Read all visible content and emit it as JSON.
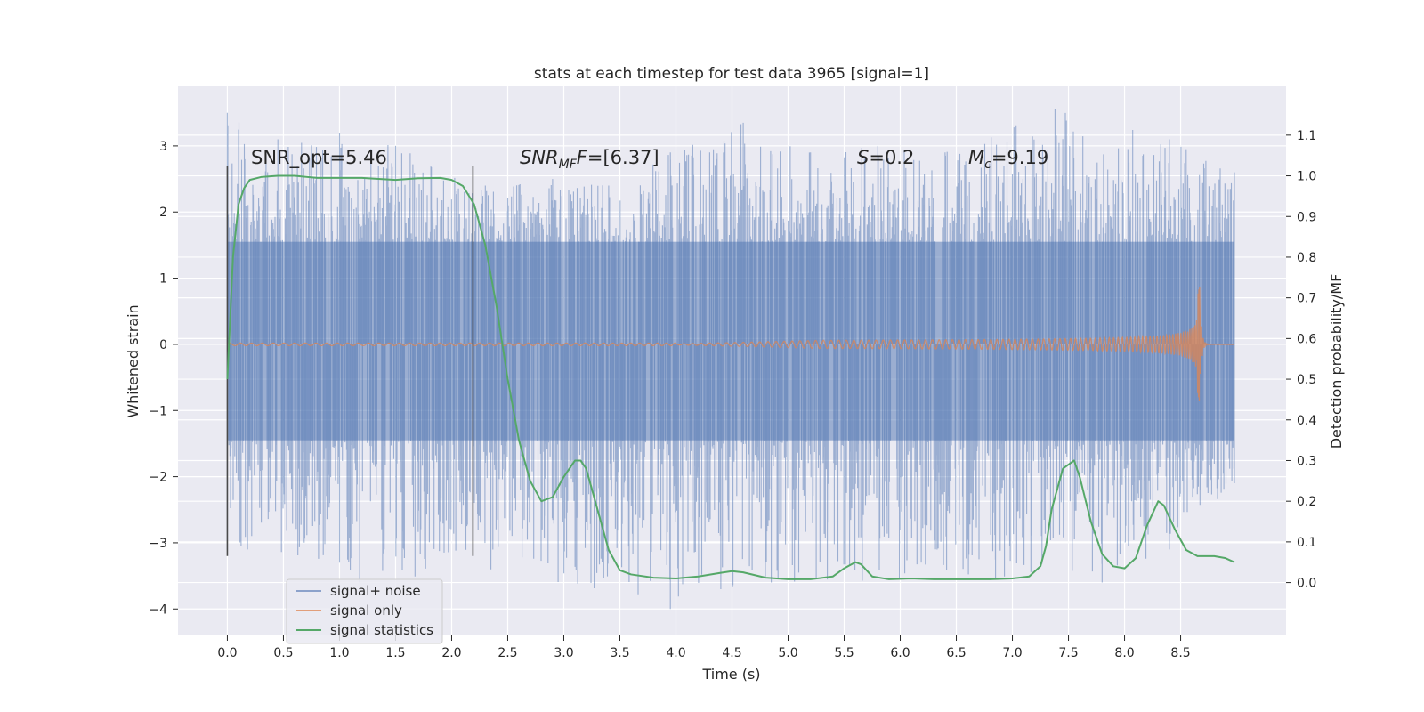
{
  "chart_data": {
    "type": "line",
    "title": "stats at each timestep for test data 3965 [signal=1]",
    "xlabel": "Time (s)",
    "ylabel": "Whitened strain",
    "y2label": "Detection probability/MF",
    "xlim": [
      -0.44,
      9.44
    ],
    "ylim": [
      -4.4,
      3.9
    ],
    "y2lim": [
      -0.13,
      1.22
    ],
    "xticks": [
      "0.0",
      "0.5",
      "1.0",
      "1.5",
      "2.0",
      "2.5",
      "3.0",
      "3.5",
      "4.0",
      "4.5",
      "5.0",
      "5.5",
      "6.0",
      "6.5",
      "7.0",
      "7.5",
      "8.0",
      "8.5"
    ],
    "yticks": [
      "−4",
      "−3",
      "−2",
      "−1",
      "0",
      "1",
      "2",
      "3"
    ],
    "y2ticks": [
      "0.0",
      "0.1",
      "0.2",
      "0.3",
      "0.4",
      "0.5",
      "0.6",
      "0.7",
      "0.8",
      "0.9",
      "1.0",
      "1.1"
    ],
    "grid": true,
    "legend_position": "lower-left",
    "colors": {
      "background": "#eaeaf2",
      "grid": "#ffffff",
      "noise": "#4c72b0",
      "signal": "#dd8452",
      "statistic": "#55a868",
      "vline": "#4a4a4a"
    },
    "annotations": {
      "snr_opt": "SNR_opt=5.46",
      "snr_mf_base": "SNR",
      "snr_mf_sub": "MF",
      "snr_mf_value": "=[6.37]",
      "s_base": "S",
      "s_value": "=0.2",
      "mc_base": "M",
      "mc_sub": "c",
      "mc_value": "=9.19"
    },
    "vertical_lines": [
      {
        "x": 0.0,
        "y_range": [
          -3.2,
          2.7
        ]
      },
      {
        "x": 2.19,
        "y_range": [
          -3.2,
          2.7
        ]
      }
    ],
    "series": [
      {
        "name": "signal+ noise",
        "axis": "left",
        "style": "noise-band",
        "x_range": [
          0.0,
          8.98
        ],
        "core_band": [
          -1.45,
          1.55
        ],
        "peaks": [
          {
            "x": 0.0,
            "y": 3.5
          },
          {
            "x": 0.45,
            "y": 3.1
          },
          {
            "x": 1.0,
            "y": 3.2
          },
          {
            "x": 1.5,
            "y": 3.0
          },
          {
            "x": 2.3,
            "y": 2.4
          },
          {
            "x": 2.9,
            "y": 2.5
          },
          {
            "x": 3.4,
            "y": 2.4
          },
          {
            "x": 3.95,
            "y": 2.9
          },
          {
            "x": 4.6,
            "y": 3.35
          },
          {
            "x": 5.2,
            "y": 2.9
          },
          {
            "x": 5.8,
            "y": 3.0
          },
          {
            "x": 6.4,
            "y": 2.9
          },
          {
            "x": 7.38,
            "y": 3.55
          },
          {
            "x": 8.4,
            "y": 3.1
          },
          {
            "x": 8.98,
            "y": 2.6
          }
        ],
        "troughs": [
          {
            "x": 0.0,
            "y": -3.1
          },
          {
            "x": 0.18,
            "y": -3.1
          },
          {
            "x": 1.0,
            "y": -3.3
          },
          {
            "x": 1.18,
            "y": -3.6
          },
          {
            "x": 2.35,
            "y": -3.4
          },
          {
            "x": 3.95,
            "y": -4.0
          },
          {
            "x": 4.4,
            "y": -3.7
          },
          {
            "x": 4.85,
            "y": -3.6
          },
          {
            "x": 6.85,
            "y": -3.55
          },
          {
            "x": 7.8,
            "y": -3.6
          },
          {
            "x": 8.4,
            "y": -3.1
          },
          {
            "x": 8.98,
            "y": -2.1
          }
        ]
      },
      {
        "name": "signal only",
        "axis": "left",
        "style": "chirp",
        "x_range": [
          0.0,
          8.98
        ],
        "merger_x": 8.67,
        "peak_amplitude": 0.9,
        "start_amplitude": 0.02
      },
      {
        "name": "signal statistics",
        "axis": "right",
        "style": "line",
        "x": [
          0.0,
          0.05,
          0.1,
          0.15,
          0.2,
          0.3,
          0.45,
          0.6,
          0.8,
          1.0,
          1.2,
          1.5,
          1.7,
          1.9,
          2.0,
          2.1,
          2.2,
          2.3,
          2.4,
          2.5,
          2.6,
          2.7,
          2.8,
          2.9,
          3.0,
          3.1,
          3.15,
          3.2,
          3.3,
          3.4,
          3.5,
          3.6,
          3.8,
          4.0,
          4.2,
          4.4,
          4.5,
          4.6,
          4.8,
          5.0,
          5.2,
          5.4,
          5.5,
          5.6,
          5.65,
          5.75,
          5.9,
          6.1,
          6.3,
          6.6,
          6.8,
          7.0,
          7.15,
          7.25,
          7.3,
          7.35,
          7.45,
          7.55,
          7.6,
          7.7,
          7.8,
          7.9,
          8.0,
          8.1,
          8.2,
          8.3,
          8.35,
          8.45,
          8.55,
          8.65,
          8.8,
          8.9,
          8.98
        ],
        "y": [
          0.5,
          0.8,
          0.93,
          0.97,
          0.99,
          0.997,
          1.0,
          1.0,
          0.995,
          0.995,
          0.995,
          0.99,
          0.994,
          0.995,
          0.99,
          0.975,
          0.93,
          0.83,
          0.68,
          0.5,
          0.35,
          0.25,
          0.2,
          0.21,
          0.26,
          0.3,
          0.3,
          0.28,
          0.18,
          0.08,
          0.03,
          0.02,
          0.012,
          0.01,
          0.015,
          0.024,
          0.028,
          0.025,
          0.012,
          0.008,
          0.008,
          0.015,
          0.035,
          0.05,
          0.045,
          0.015,
          0.008,
          0.01,
          0.008,
          0.008,
          0.008,
          0.01,
          0.015,
          0.04,
          0.09,
          0.18,
          0.28,
          0.3,
          0.26,
          0.15,
          0.07,
          0.04,
          0.035,
          0.06,
          0.14,
          0.2,
          0.19,
          0.13,
          0.08,
          0.065,
          0.065,
          0.06,
          0.05
        ]
      }
    ]
  }
}
